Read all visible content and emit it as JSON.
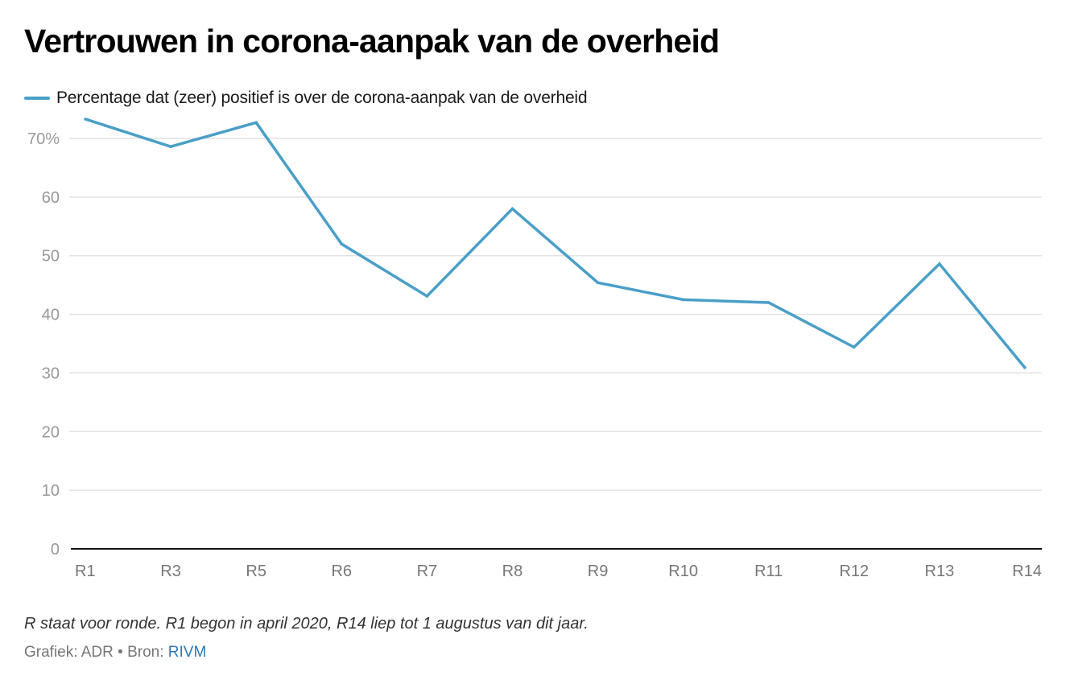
{
  "title": "Vertrouwen in corona-aanpak van de overheid",
  "note": "R staat voor ronde. R1 begon in april 2020, R14 liep tot 1 augustus van dit jaar.",
  "credit": {
    "graphic_label": "Grafiek: ADR",
    "separator": " • ",
    "source_label": "Bron: ",
    "source_link": "RIVM"
  },
  "colors": {
    "line": "#4a9fc8",
    "grid": "#e3e3e3",
    "axis": "#111111",
    "tick_text": "#999999",
    "xtick_text": "#777777",
    "link": "#2a7ab8"
  },
  "chart_data": {
    "type": "line",
    "title": "Vertrouwen in corona-aanpak van de overheid",
    "xlabel": "",
    "ylabel": "",
    "categories": [
      "R1",
      "R3",
      "R5",
      "R6",
      "R7",
      "R8",
      "R9",
      "R10",
      "R11",
      "R12",
      "R13",
      "R14"
    ],
    "series": [
      {
        "name": "Percentage dat (zeer) positief is over de corona-aanpak van de overheid",
        "values": [
          73.3,
          68.6,
          72.7,
          52.0,
          43.1,
          58.0,
          45.4,
          42.5,
          42.0,
          34.4,
          48.6,
          30.9
        ]
      }
    ],
    "ylim": [
      0,
      70
    ],
    "yticks": [
      0,
      10,
      20,
      30,
      40,
      50,
      60,
      70
    ],
    "ytick_labels": [
      "0",
      "10",
      "20",
      "30",
      "40",
      "50",
      "60",
      "70%"
    ],
    "grid": true,
    "legend_position": "top-left"
  }
}
